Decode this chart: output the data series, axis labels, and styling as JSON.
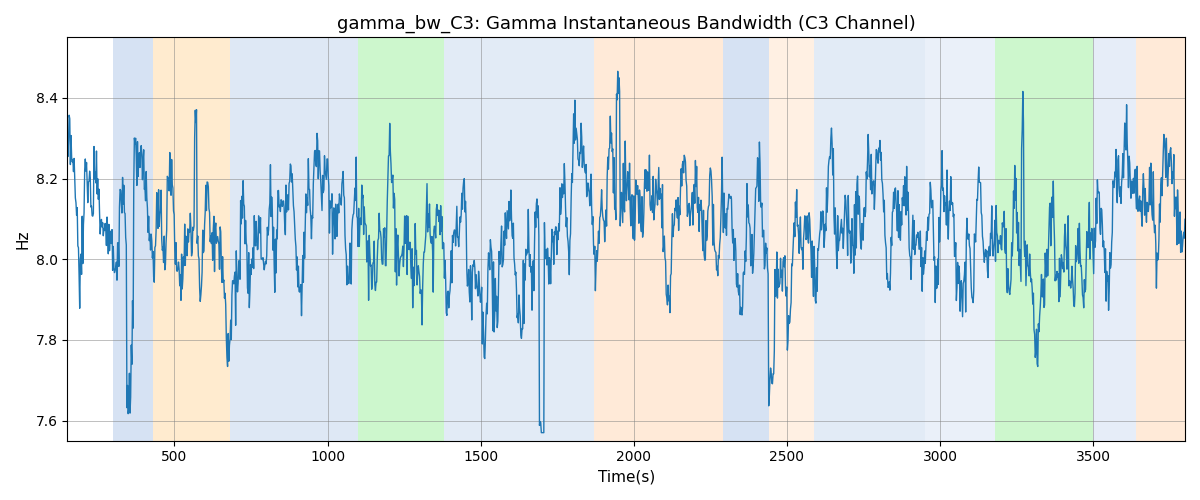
{
  "title": "gamma_bw_C3: Gamma Instantaneous Bandwidth (C3 Channel)",
  "xlabel": "Time(s)",
  "ylabel": "Hz",
  "xlim": [
    150,
    3800
  ],
  "ylim": [
    7.55,
    8.55
  ],
  "line_color": "#1f77b4",
  "line_width": 1.0,
  "grid": true,
  "bands": [
    {
      "xmin": 300,
      "xmax": 430,
      "color": "#AEC6E8",
      "alpha": 0.5
    },
    {
      "xmin": 430,
      "xmax": 680,
      "color": "#FFD9A0",
      "alpha": 0.5
    },
    {
      "xmin": 680,
      "xmax": 1100,
      "color": "#AEC6E8",
      "alpha": 0.4
    },
    {
      "xmin": 1100,
      "xmax": 1380,
      "color": "#90EE90",
      "alpha": 0.45
    },
    {
      "xmin": 1380,
      "xmax": 1870,
      "color": "#AEC6E8",
      "alpha": 0.35
    },
    {
      "xmin": 1870,
      "xmax": 2290,
      "color": "#FFDAB9",
      "alpha": 0.55
    },
    {
      "xmin": 2290,
      "xmax": 2440,
      "color": "#AEC6E8",
      "alpha": 0.5
    },
    {
      "xmin": 2440,
      "xmax": 2590,
      "color": "#FFDAB9",
      "alpha": 0.4
    },
    {
      "xmin": 2590,
      "xmax": 2950,
      "color": "#AEC6E8",
      "alpha": 0.35
    },
    {
      "xmin": 2950,
      "xmax": 3180,
      "color": "#AEC6E8",
      "alpha": 0.25
    },
    {
      "xmin": 3180,
      "xmax": 3500,
      "color": "#90EE90",
      "alpha": 0.45
    },
    {
      "xmin": 3500,
      "xmax": 3640,
      "color": "#AEC6E8",
      "alpha": 0.3
    },
    {
      "xmin": 3640,
      "xmax": 3820,
      "color": "#FFDAB9",
      "alpha": 0.55
    }
  ],
  "xticks": [
    500,
    1000,
    1500,
    2000,
    2500,
    3000,
    3500
  ],
  "title_fontsize": 13
}
